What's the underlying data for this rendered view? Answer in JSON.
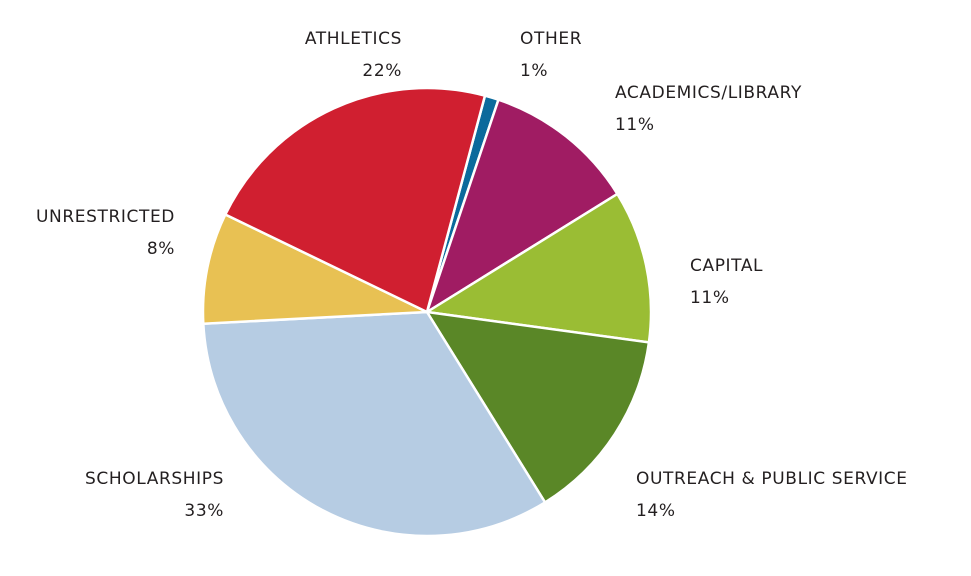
{
  "chart_data": {
    "type": "pie",
    "title": "",
    "slices": [
      {
        "label": "OTHER",
        "value": 1,
        "value_label": "1%",
        "color": "#0b6a9c"
      },
      {
        "label": "ACADEMICS/LIBRARY",
        "value": 11,
        "value_label": "11%",
        "color": "#a01c63"
      },
      {
        "label": "CAPITAL",
        "value": 11,
        "value_label": "11%",
        "color": "#9abd34"
      },
      {
        "label": "OUTREACH & PUBLIC SERVICE",
        "value": 14,
        "value_label": "14%",
        "color": "#5a8727"
      },
      {
        "label": "SCHOLARSHIPS",
        "value": 33,
        "value_label": "33%",
        "color": "#b6cce3"
      },
      {
        "label": "UNRESTRICTED",
        "value": 8,
        "value_label": "8%",
        "color": "#e8c153"
      },
      {
        "label": "ATHLETICS",
        "value": 22,
        "value_label": "22%",
        "color": "#d01f30"
      }
    ],
    "start_angle_deg": 15,
    "direction": "clockwise",
    "legend": "none",
    "labels": "outside"
  }
}
